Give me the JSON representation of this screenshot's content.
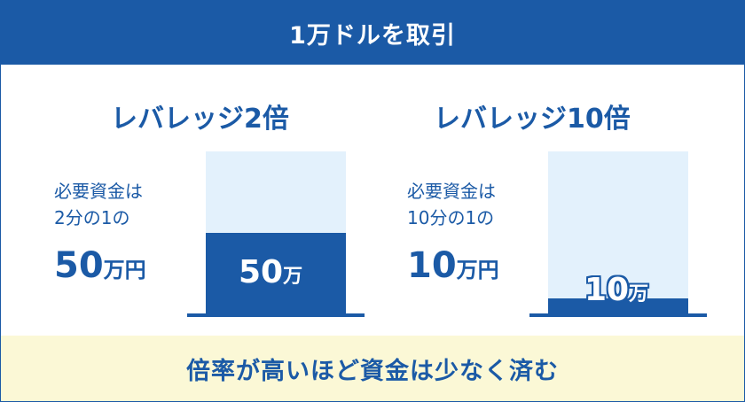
{
  "header": {
    "title": "1万ドルを取引"
  },
  "columns": [
    {
      "title": "レバレッジ2倍",
      "desc_line1": "必要資金は",
      "desc_line2": "2分の1の",
      "amount_number": "50",
      "amount_unit": "万円",
      "bar_fill_fraction": 0.5,
      "bar_label_number": "50",
      "bar_label_unit": "万"
    },
    {
      "title": "レバレッジ10倍",
      "desc_line1": "必要資金は",
      "desc_line2": "10分の1の",
      "amount_number": "10",
      "amount_unit": "万円",
      "bar_fill_fraction": 0.1,
      "bar_label_number": "10",
      "bar_label_unit": "万"
    }
  ],
  "footer": {
    "text": "倍率が高いほど資金は少なく済む"
  },
  "colors": {
    "primary": "#1b5aa6",
    "bar_background": "#e3f1fc",
    "footer_background": "#fbf8d6"
  }
}
